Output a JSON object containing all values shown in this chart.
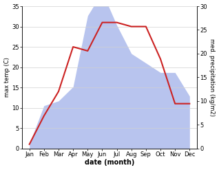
{
  "months": [
    "Jan",
    "Feb",
    "Mar",
    "Apr",
    "May",
    "Jun",
    "Jul",
    "Aug",
    "Sep",
    "Oct",
    "Nov",
    "Dec"
  ],
  "x": [
    0,
    1,
    2,
    3,
    4,
    5,
    6,
    7,
    8,
    9,
    10,
    11
  ],
  "temperature": [
    1,
    8,
    14,
    25,
    24,
    31,
    31,
    30,
    30,
    22,
    11,
    11
  ],
  "precipitation": [
    1,
    9,
    10,
    13,
    28,
    33,
    26,
    20,
    18,
    16,
    16,
    11
  ],
  "temp_color": "#cc2222",
  "precip_color": "#b8c4ee",
  "temp_ylim": [
    0,
    35
  ],
  "precip_ylim": [
    0,
    30
  ],
  "temp_yticks": [
    0,
    5,
    10,
    15,
    20,
    25,
    30,
    35
  ],
  "precip_yticks": [
    0,
    5,
    10,
    15,
    20,
    25,
    30
  ],
  "xlabel": "date (month)",
  "ylabel_left": "max temp (C)",
  "ylabel_right": "med. precipitation (kg/m2)",
  "background_color": "#ffffff",
  "grid_color": "#d0d0d0"
}
